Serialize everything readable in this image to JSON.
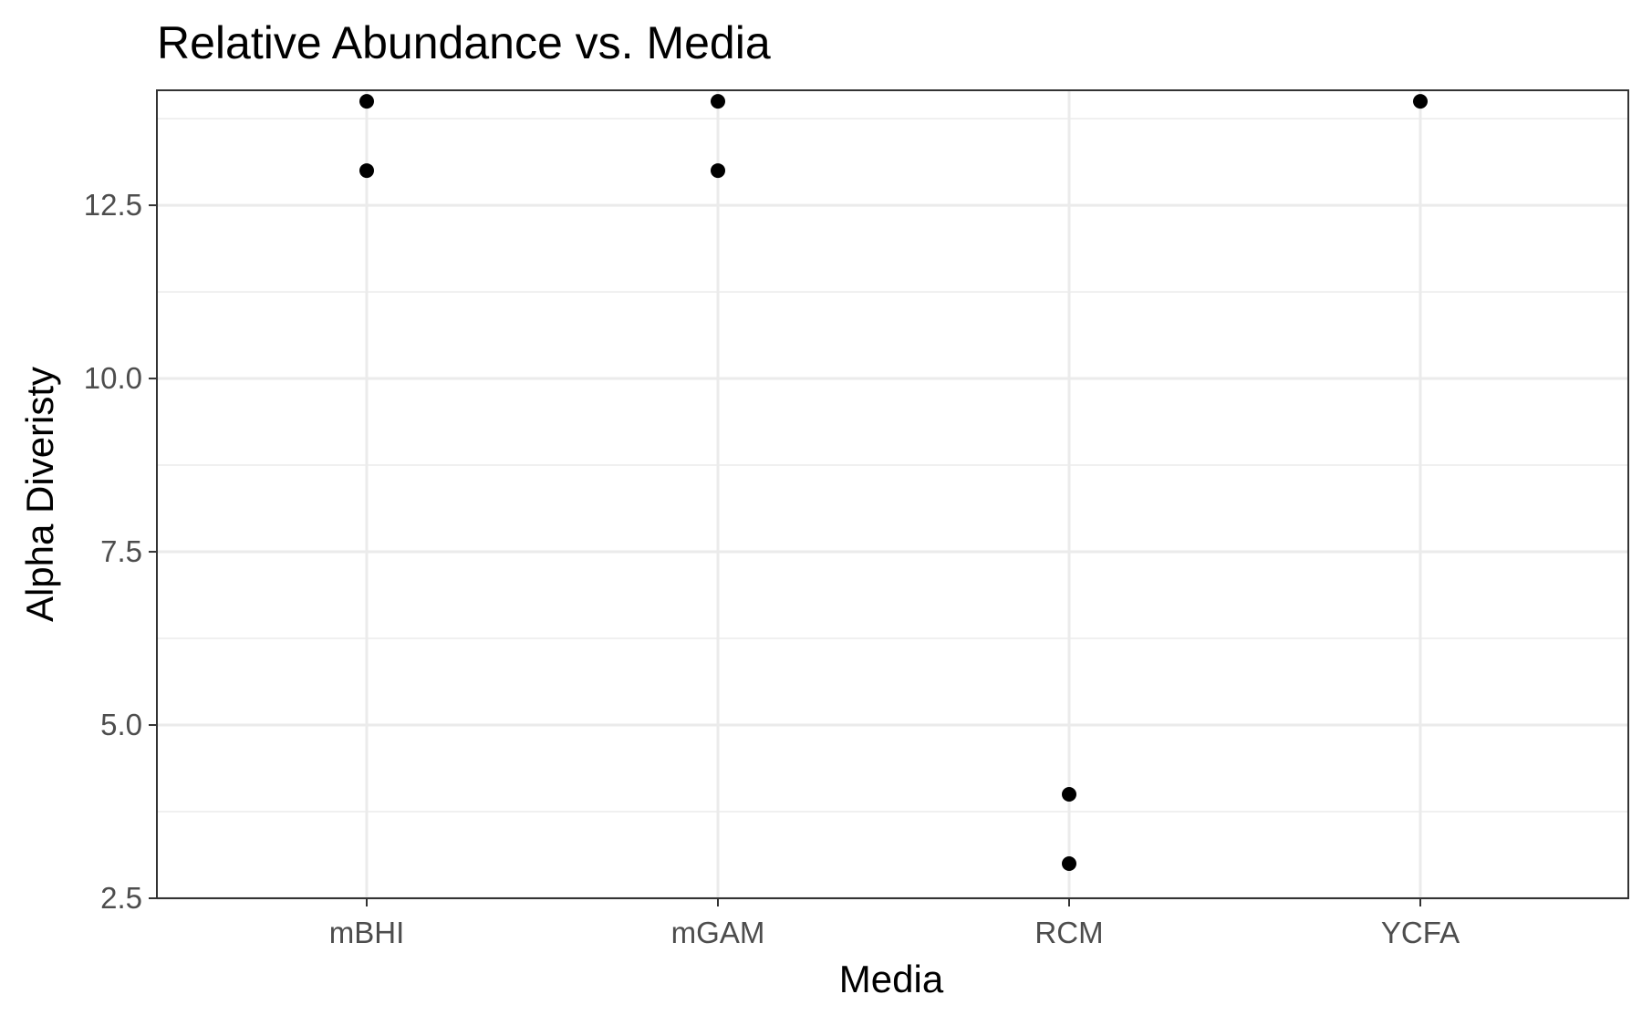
{
  "chart_data": {
    "type": "scatter",
    "title": "Relative Abundance vs. Media",
    "xlabel": "Media",
    "ylabel": "Alpha Diveristy",
    "categories": [
      "mBHI",
      "mGAM",
      "RCM",
      "YCFA"
    ],
    "points": [
      {
        "x": "mBHI",
        "y": 14
      },
      {
        "x": "mBHI",
        "y": 13
      },
      {
        "x": "mGAM",
        "y": 14
      },
      {
        "x": "mGAM",
        "y": 13
      },
      {
        "x": "RCM",
        "y": 4
      },
      {
        "x": "RCM",
        "y": 3
      },
      {
        "x": "YCFA",
        "y": 14
      }
    ],
    "ylim": [
      2.5,
      15
    ],
    "yticks": [
      2.5,
      5.0,
      7.5,
      10.0,
      12.5
    ],
    "ytick_labels": [
      "2.5",
      "5.0",
      "7.5",
      "10.0",
      "12.5"
    ],
    "grid": true,
    "legend": "none",
    "colors": {
      "point": "#000000",
      "grid": "#ebebeb",
      "panel_border": "#333333",
      "tick_label": "#4d4d4d"
    }
  }
}
